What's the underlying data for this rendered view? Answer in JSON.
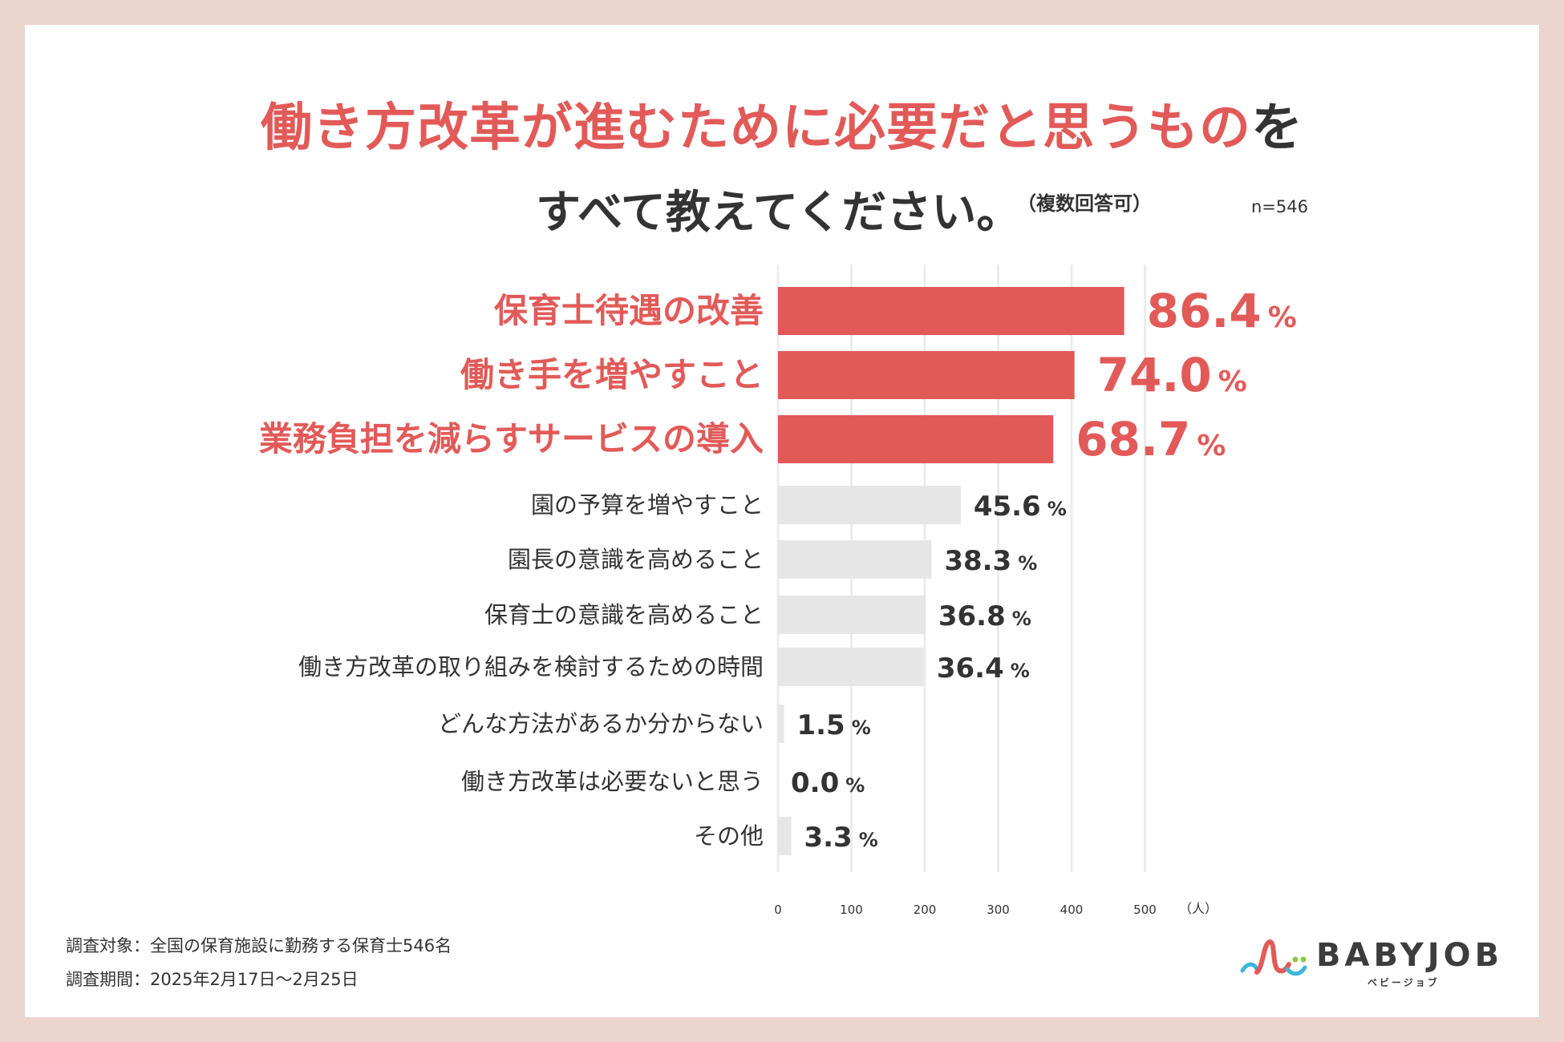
{
  "title": {
    "line1_main": "働き方改革が進むために必要だと思うもの",
    "line1_suffix": "を",
    "line2": "すべて教えてください。",
    "note": "（複数回答可）",
    "n": "n=546"
  },
  "chart_data": {
    "type": "bar",
    "orientation": "horizontal",
    "x_axis": {
      "ticks": [
        0,
        100,
        200,
        300,
        400,
        500
      ],
      "unit": "（人）",
      "range": [
        0,
        546
      ]
    },
    "value_suffix": "%",
    "highlight_color": "#e25a58",
    "normal_color": "#e6e6e6",
    "label_color_highlight": "#e25a58",
    "label_color_normal": "#333333",
    "categories": [
      "保育士待遇の改善",
      "働き手を増やすこと",
      "業務負担を減らすサービスの導入",
      "園の予算を増やすこと",
      "園長の意識を高めること",
      "保育士の意識を高めること",
      "働き方改革の取り組みを検討するための時間",
      "どんな方法があるか分からない",
      "働き方改革は必要ないと思う",
      "その他"
    ],
    "values": [
      86.4,
      74.0,
      68.7,
      45.6,
      38.3,
      36.8,
      36.4,
      1.5,
      0.0,
      3.3
    ],
    "value_labels": [
      "86.4",
      "74.0",
      "68.7",
      "45.6",
      "38.3",
      "36.8",
      "36.4",
      "1.5",
      "0.0",
      "3.3"
    ],
    "highlighted": [
      true,
      true,
      true,
      false,
      false,
      false,
      false,
      false,
      false,
      false
    ]
  },
  "footer": {
    "target": "調査対象：全国の保育施設に勤務する保育士546名",
    "period": "調査期間：2025年2月17日〜2月25日"
  },
  "logo": {
    "name": "BABYJOB",
    "sub": "ベビージョブ"
  }
}
